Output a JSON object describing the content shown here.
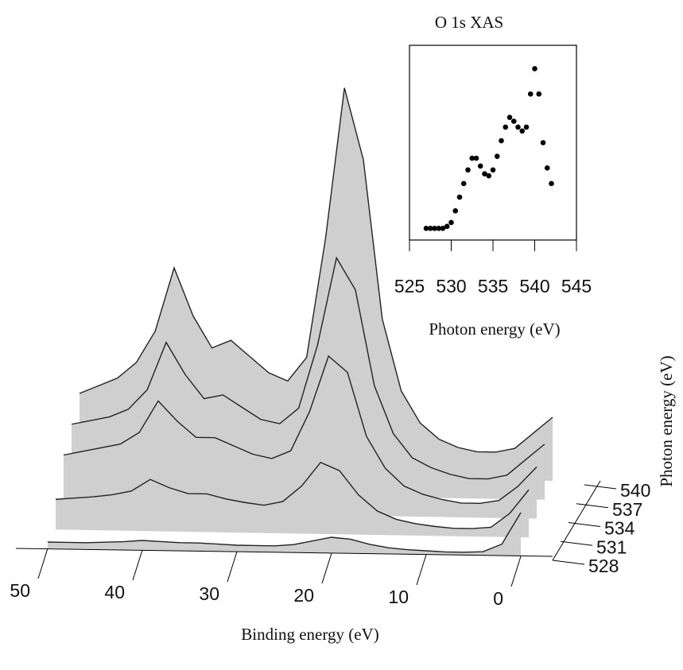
{
  "chart_data": [
    {
      "type": "waterfall",
      "x_label": "Binding energy (eV)",
      "y_label": "Photon energy (eV)",
      "x": [
        0,
        2,
        4,
        6,
        8,
        10,
        12,
        14,
        16,
        18,
        20,
        22,
        24,
        26,
        28,
        30,
        32,
        34,
        36,
        38,
        40,
        42,
        44,
        46,
        48,
        50
      ],
      "xlim": [
        0,
        50
      ],
      "xticks": [
        50,
        40,
        30,
        20,
        10,
        0
      ],
      "ylim": [
        528,
        540
      ],
      "yticks": [
        540,
        537,
        534,
        531,
        528
      ],
      "color": "#222",
      "series": [
        {
          "photon_energy": 540,
          "values": [
            80,
            60,
            40,
            35,
            35,
            40,
            50,
            70,
            110,
            200,
            400,
            490,
            300,
            150,
            120,
            130,
            150,
            170,
            160,
            200,
            260,
            180,
            140,
            120,
            110,
            100
          ]
        },
        {
          "photon_energy": 537,
          "values": [
            70,
            50,
            30,
            25,
            25,
            30,
            38,
            50,
            80,
            140,
            260,
            300,
            190,
            110,
            90,
            95,
            110,
            125,
            120,
            150,
            190,
            130,
            105,
            95,
            90,
            85
          ]
        },
        {
          "photon_energy": 534,
          "values": [
            65,
            40,
            22,
            18,
            18,
            22,
            28,
            38,
            60,
            100,
            180,
            200,
            130,
            80,
            70,
            75,
            85,
            95,
            95,
            115,
            140,
            100,
            85,
            80,
            75,
            70
          ]
        },
        {
          "photon_energy": 531,
          "values": [
            60,
            30,
            12,
            10,
            10,
            12,
            15,
            20,
            30,
            50,
            80,
            90,
            60,
            40,
            35,
            38,
            42,
            48,
            48,
            55,
            65,
            50,
            45,
            42,
            40,
            38
          ]
        },
        {
          "photon_energy": 528,
          "values": [
            55,
            15,
            5,
            4,
            4,
            5,
            6,
            8,
            12,
            18,
            20,
            15,
            10,
            8,
            8,
            8,
            9,
            10,
            10,
            11,
            12,
            10,
            9,
            8,
            8,
            8
          ]
        }
      ]
    },
    {
      "type": "scatter",
      "title": "O 1s XAS",
      "x_label": "Photon energy (eV)",
      "x": [
        527,
        527.5,
        528,
        528.5,
        529,
        529.5,
        530,
        530.5,
        531,
        531.5,
        532,
        532.5,
        533,
        533.5,
        534,
        534.5,
        535,
        535.5,
        536,
        536.5,
        537,
        537.5,
        538,
        538.5,
        539,
        539.5,
        540,
        540.5,
        541,
        541.5,
        542
      ],
      "values": [
        0.06,
        0.06,
        0.06,
        0.06,
        0.06,
        0.07,
        0.09,
        0.15,
        0.22,
        0.29,
        0.36,
        0.42,
        0.42,
        0.38,
        0.34,
        0.33,
        0.36,
        0.43,
        0.51,
        0.58,
        0.63,
        0.61,
        0.58,
        0.56,
        0.58,
        0.75,
        0.88,
        0.75,
        0.5,
        0.37,
        0.29
      ],
      "xlim": [
        525,
        545
      ],
      "xticks": [
        525,
        530,
        535,
        540,
        545
      ],
      "ylim": [
        0,
        1
      ],
      "color": "#000"
    }
  ]
}
